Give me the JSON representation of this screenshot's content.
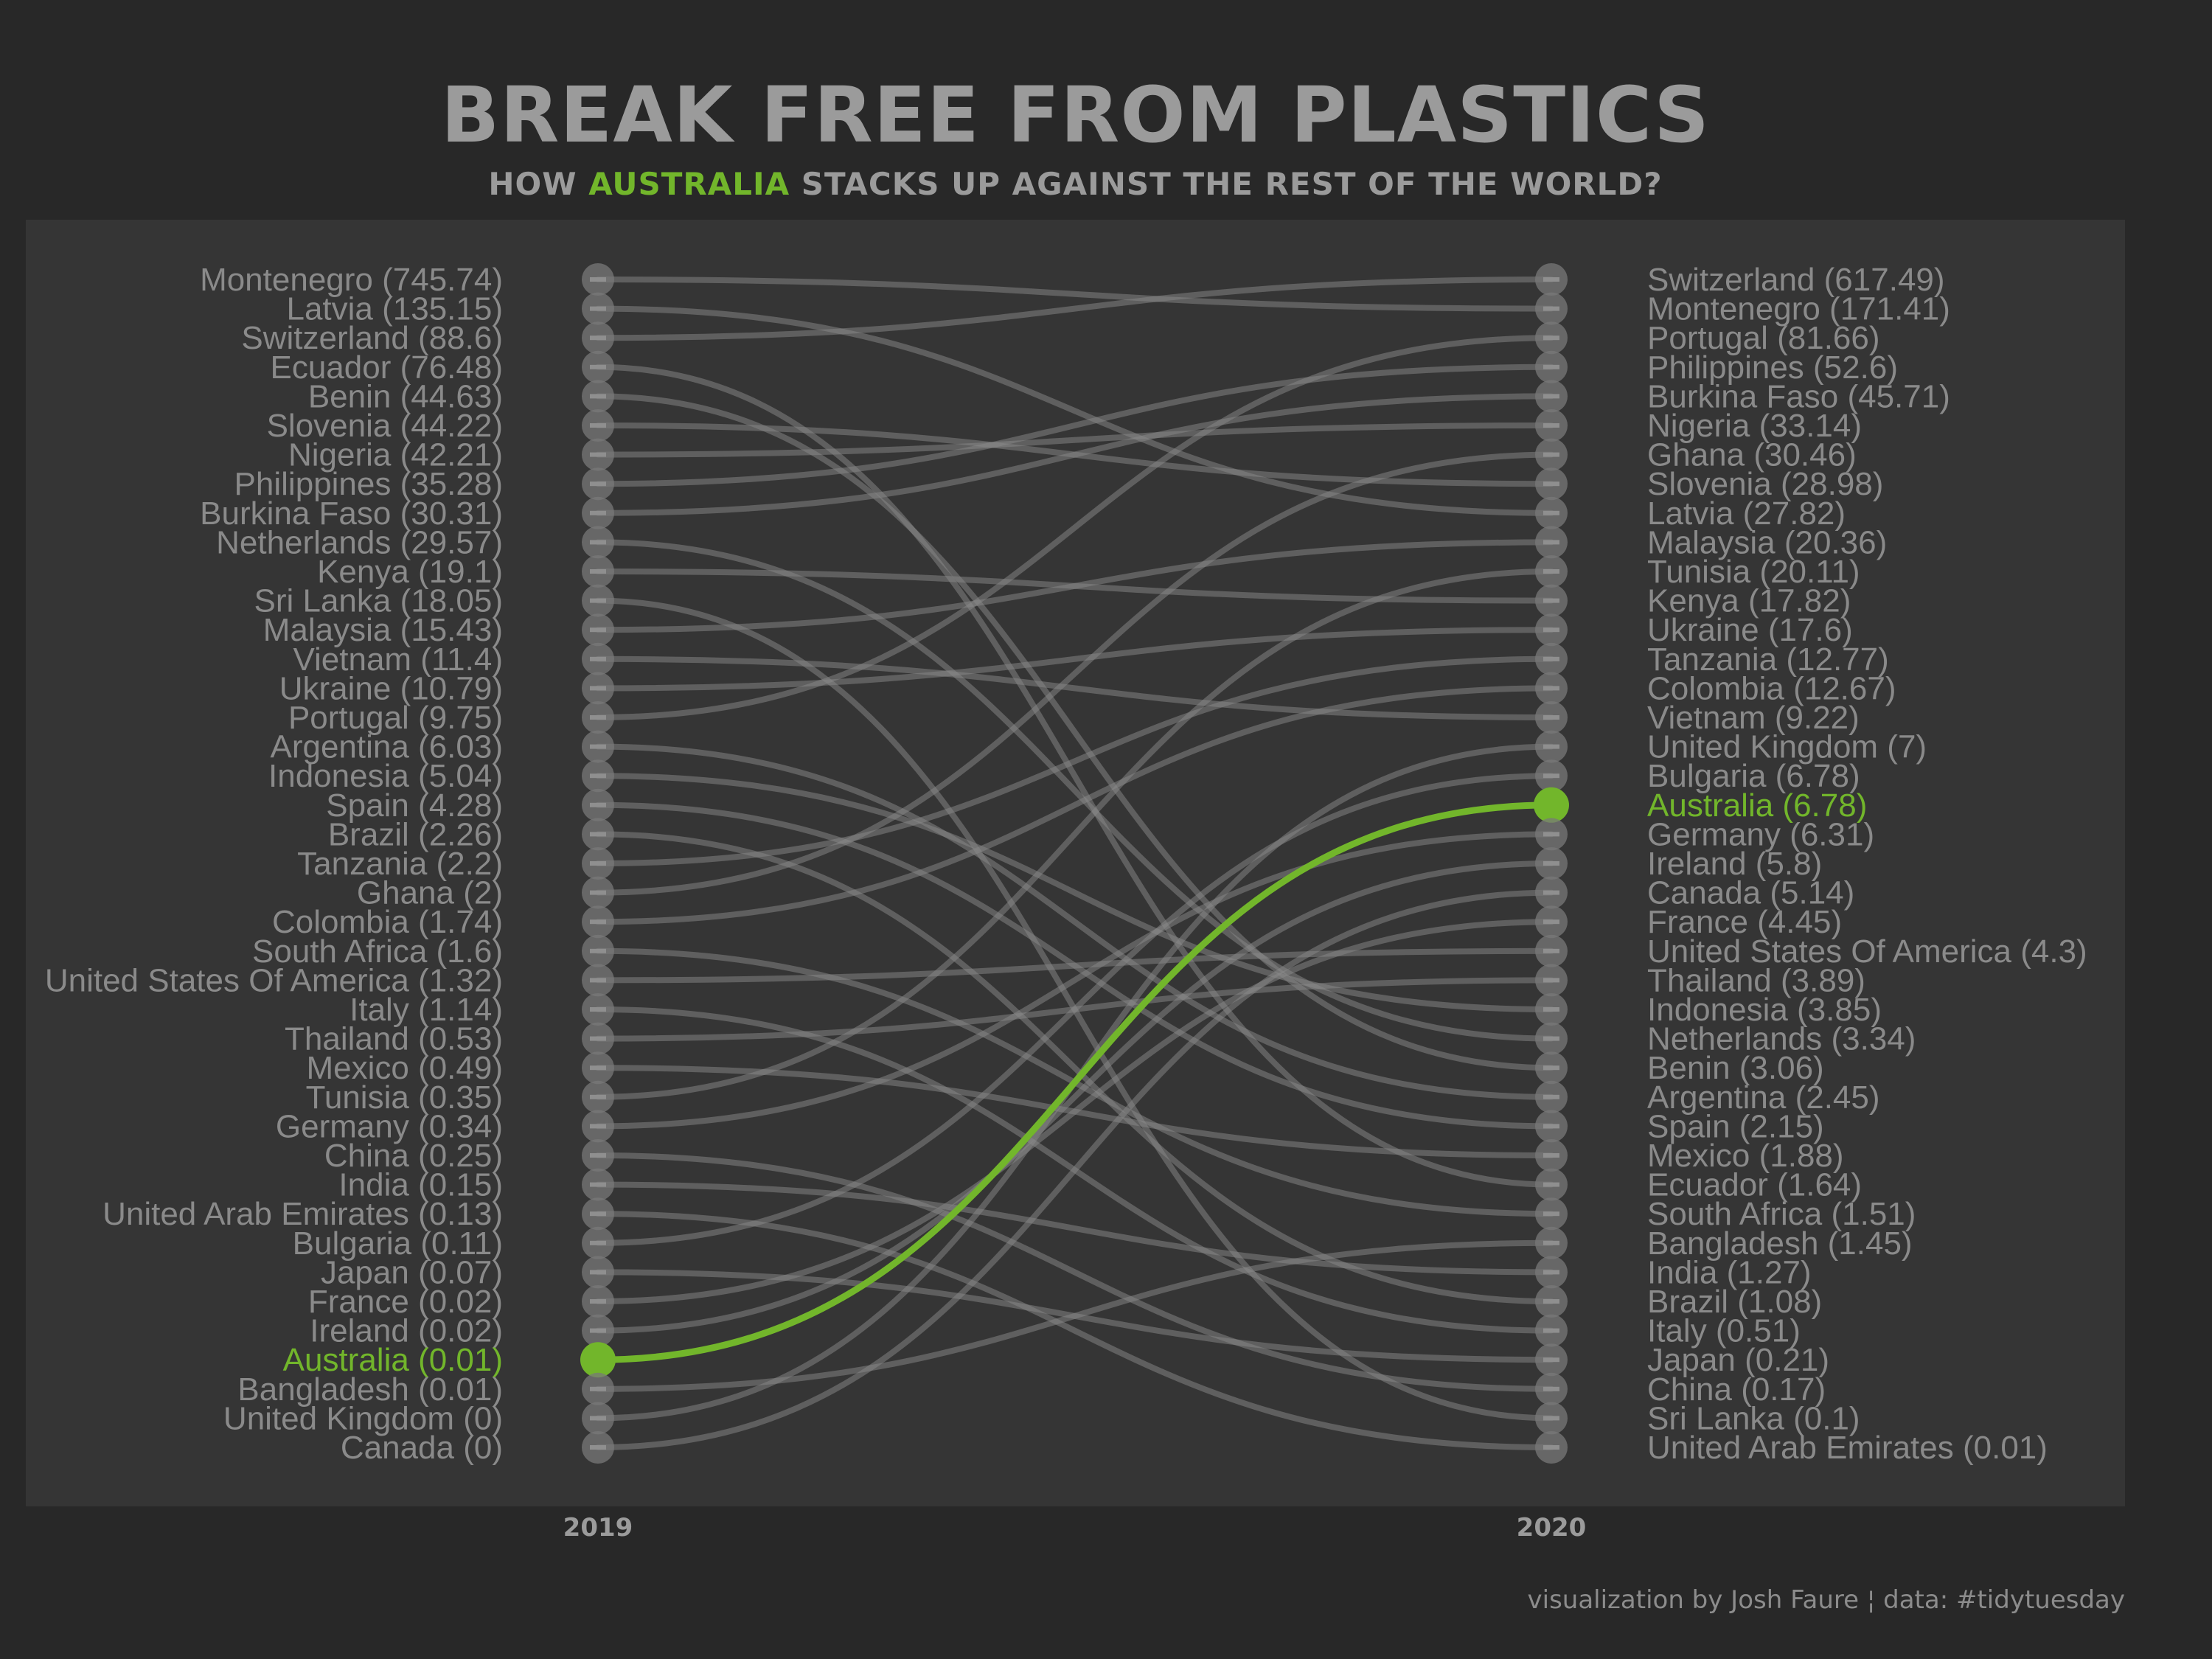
{
  "title": "BREAK FREE FROM PLASTICS",
  "subtitle": {
    "before": "HOW ",
    "highlight": "AUSTRALIA",
    "after": " STACKS UP AGAINST THE REST OF THE WORLD?"
  },
  "caption": "visualization by Josh Faure  ¦  data: #tidytuesday",
  "colors": {
    "background": "#282828",
    "panel": "#353535",
    "text": "#9b9b9b",
    "highlight": "#72b62b",
    "line": "#8a8a8a"
  },
  "chart_data": {
    "type": "bump",
    "x": [
      "2019",
      "2020"
    ],
    "highlight": "Australia",
    "series_2019": [
      [
        "Montenegro",
        745.74
      ],
      [
        "Latvia",
        135.15
      ],
      [
        "Switzerland",
        88.6
      ],
      [
        "Ecuador",
        76.48
      ],
      [
        "Benin",
        44.63
      ],
      [
        "Slovenia",
        44.22
      ],
      [
        "Nigeria",
        42.21
      ],
      [
        "Philippines",
        35.28
      ],
      [
        "Burkina Faso",
        30.31
      ],
      [
        "Netherlands",
        29.57
      ],
      [
        "Kenya",
        19.1
      ],
      [
        "Sri Lanka",
        18.05
      ],
      [
        "Malaysia",
        15.43
      ],
      [
        "Vietnam",
        11.4
      ],
      [
        "Ukraine",
        10.79
      ],
      [
        "Portugal",
        9.75
      ],
      [
        "Argentina",
        6.03
      ],
      [
        "Indonesia",
        5.04
      ],
      [
        "Spain",
        4.28
      ],
      [
        "Brazil",
        2.26
      ],
      [
        "Tanzania",
        2.2
      ],
      [
        "Ghana",
        2
      ],
      [
        "Colombia",
        1.74
      ],
      [
        "South Africa",
        1.6
      ],
      [
        "United States Of America",
        1.32
      ],
      [
        "Italy",
        1.14
      ],
      [
        "Thailand",
        0.53
      ],
      [
        "Mexico",
        0.49
      ],
      [
        "Tunisia",
        0.35
      ],
      [
        "Germany",
        0.34
      ],
      [
        "China",
        0.25
      ],
      [
        "India",
        0.15
      ],
      [
        "United Arab Emirates",
        0.13
      ],
      [
        "Bulgaria",
        0.11
      ],
      [
        "Japan",
        0.07
      ],
      [
        "France",
        0.02
      ],
      [
        "Ireland",
        0.02
      ],
      [
        "Australia",
        0.01
      ],
      [
        "Bangladesh",
        0.01
      ],
      [
        "United Kingdom",
        0
      ],
      [
        "Canada",
        0
      ]
    ],
    "series_2020": [
      [
        "Switzerland",
        617.49
      ],
      [
        "Montenegro",
        171.41
      ],
      [
        "Portugal",
        81.66
      ],
      [
        "Philippines",
        52.6
      ],
      [
        "Burkina Faso",
        45.71
      ],
      [
        "Nigeria",
        33.14
      ],
      [
        "Ghana",
        30.46
      ],
      [
        "Slovenia",
        28.98
      ],
      [
        "Latvia",
        27.82
      ],
      [
        "Malaysia",
        20.36
      ],
      [
        "Tunisia",
        20.11
      ],
      [
        "Kenya",
        17.82
      ],
      [
        "Ukraine",
        17.6
      ],
      [
        "Tanzania",
        12.77
      ],
      [
        "Colombia",
        12.67
      ],
      [
        "Vietnam",
        9.22
      ],
      [
        "United Kingdom",
        7
      ],
      [
        "Bulgaria",
        6.78
      ],
      [
        "Australia",
        6.78
      ],
      [
        "Germany",
        6.31
      ],
      [
        "Ireland",
        5.8
      ],
      [
        "Canada",
        5.14
      ],
      [
        "France",
        4.45
      ],
      [
        "United States Of America",
        4.3
      ],
      [
        "Thailand",
        3.89
      ],
      [
        "Indonesia",
        3.85
      ],
      [
        "Netherlands",
        3.34
      ],
      [
        "Benin",
        3.06
      ],
      [
        "Argentina",
        2.45
      ],
      [
        "Spain",
        2.15
      ],
      [
        "Mexico",
        1.88
      ],
      [
        "Ecuador",
        1.64
      ],
      [
        "South Africa",
        1.51
      ],
      [
        "Bangladesh",
        1.45
      ],
      [
        "India",
        1.27
      ],
      [
        "Brazil",
        1.08
      ],
      [
        "Italy",
        0.51
      ],
      [
        "Japan",
        0.21
      ],
      [
        "China",
        0.17
      ],
      [
        "Sri Lanka",
        0.1
      ],
      [
        "United Arab Emirates",
        0.01
      ]
    ]
  }
}
